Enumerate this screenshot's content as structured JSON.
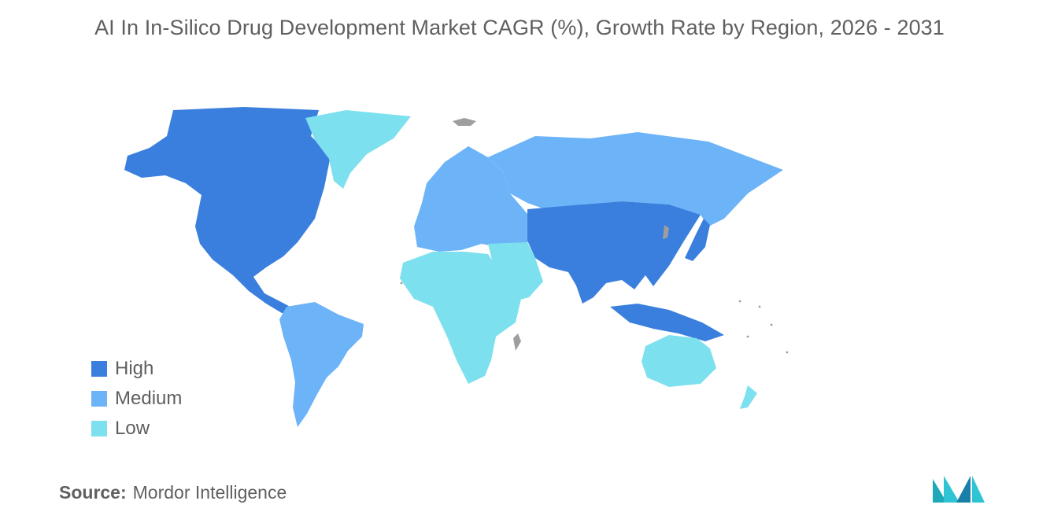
{
  "title": "AI In In-Silico Drug Development Market CAGR (%), Growth Rate by Region, 2026 - 2031",
  "legend": [
    {
      "label": "High",
      "color": "#3a7fdd"
    },
    {
      "label": "Medium",
      "color": "#6cb4f7"
    },
    {
      "label": "Low",
      "color": "#7de0ee"
    }
  ],
  "no_data_color": "#9e9e9e",
  "source": {
    "label": "Source:",
    "value": "Mordor Intelligence"
  },
  "regions": {
    "north_america": "High",
    "asia_pacific_core": "High",
    "greenland": "Low",
    "europe": "Medium",
    "russia": "Medium",
    "south_america": "Medium",
    "africa": "Low",
    "middle_east": "Low",
    "australia_nz": "Low"
  }
}
